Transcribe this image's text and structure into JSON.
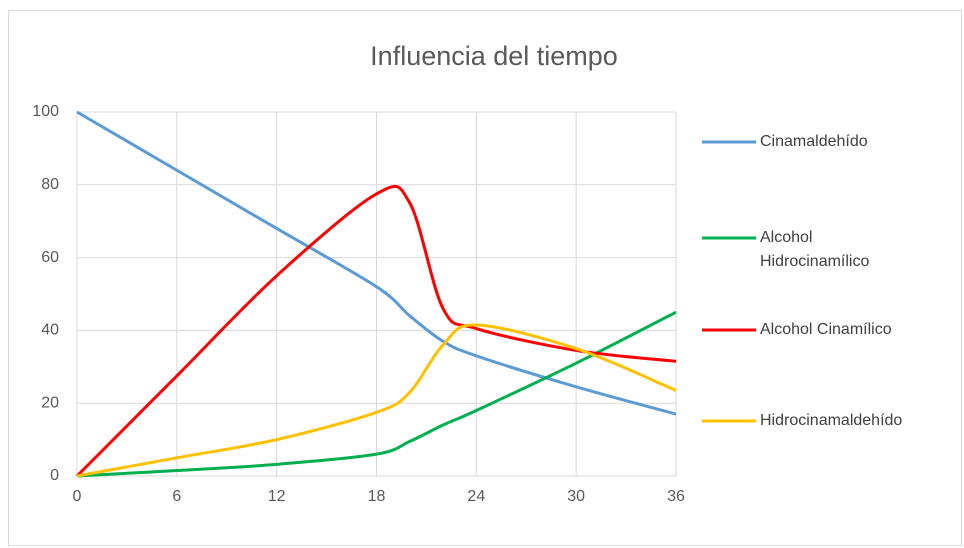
{
  "chart_data": {
    "type": "line",
    "title": "Influencia del tiempo",
    "x": [
      0,
      6,
      12,
      18,
      20,
      22,
      24,
      30,
      36
    ],
    "series": [
      {
        "name": "Cinamaldehído",
        "color": "#5b9bd5",
        "values": [
          100,
          84,
          68,
          52,
          44,
          37,
          33,
          24.5,
          17
        ]
      },
      {
        "name": "Alcohol Hidrocinamílico",
        "color": "#00b050",
        "values": [
          0,
          1.5,
          3.2,
          6,
          9.5,
          14,
          18,
          31,
          45
        ]
      },
      {
        "name": "Alcohol Cinamílico",
        "color": "#ff0000",
        "values": [
          0,
          27.5,
          55,
          77.5,
          75,
          46,
          40.5,
          34.5,
          31.5
        ]
      },
      {
        "name": "Hidrocinamaldehído",
        "color": "#ffc000",
        "values": [
          0,
          5,
          10,
          17.5,
          23,
          36,
          41.5,
          35,
          23.5
        ]
      }
    ],
    "xlim": [
      0,
      36
    ],
    "xticks": [
      0,
      6,
      12,
      18,
      24,
      30,
      36
    ],
    "ylim": [
      0,
      100
    ],
    "yticks": [
      0,
      20,
      40,
      60,
      80,
      100
    ],
    "grid": true,
    "smooth": true,
    "legend": "right"
  }
}
